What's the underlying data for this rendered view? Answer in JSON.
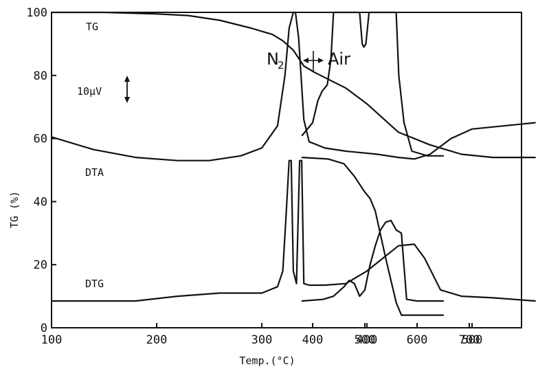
{
  "chart_data": {
    "type": "line",
    "ylabel": "TG (%)",
    "xlabel": "Temp.(°C)",
    "ylim": [
      0,
      100
    ],
    "yticks": [
      0,
      20,
      40,
      60,
      80,
      100
    ],
    "xticks_left": [
      100,
      200,
      300,
      400,
      500
    ],
    "xticks_right": [
      400,
      500,
      600,
      700
    ],
    "grid": false,
    "annotations": {
      "tg": "TG",
      "dta": "DTA",
      "dtg": "DTG",
      "scale": "10μV",
      "gas_left_main": "N",
      "gas_left_sub": "2",
      "gas_right": "Air"
    },
    "series": [
      {
        "name": "TG",
        "segment": "N2",
        "x": [
          100,
          150,
          200,
          230,
          260,
          290,
          310,
          320,
          330,
          340,
          350,
          380,
          400,
          430,
          460,
          490,
          520,
          560
        ],
        "y": [
          100,
          100,
          99.5,
          99,
          97.5,
          95,
          93,
          91,
          88,
          83,
          81,
          76,
          71,
          62,
          58,
          55,
          54,
          54
        ]
      },
      {
        "name": "TG",
        "segment": "Air",
        "x": [
          380,
          430,
          460,
          480,
          500,
          510,
          520,
          540,
          560,
          570,
          600,
          650
        ],
        "y": [
          54,
          53.5,
          52,
          48,
          43,
          41,
          37,
          22,
          8,
          4,
          4,
          4
        ]
      },
      {
        "name": "DTA",
        "segment": "N2",
        "x": [
          100,
          140,
          180,
          220,
          250,
          280,
          300,
          315,
          322,
          326,
          330,
          332,
          335,
          340,
          345,
          360,
          380,
          410,
          430,
          445,
          460,
          480,
          500,
          530,
          560
        ],
        "y": [
          60.5,
          56.5,
          54,
          53,
          53,
          54.5,
          57,
          64,
          80,
          95,
          100,
          100,
          92,
          66,
          59,
          57,
          56,
          55,
          54,
          53.5,
          55,
          60,
          63,
          64,
          65
        ]
      },
      {
        "name": "DTA",
        "segment": "Air",
        "x": [
          380,
          400,
          410,
          418,
          428,
          435,
          440,
          470,
          490,
          495,
          498,
          502,
          508,
          560,
          565,
          575,
          590,
          620,
          650
        ],
        "y": [
          61,
          65,
          72,
          75,
          77,
          85,
          100,
          100,
          100,
          90,
          89,
          90,
          100,
          100,
          80,
          65,
          56,
          54.5,
          54.5
        ]
      },
      {
        "name": "DTG",
        "segment": "N2",
        "x": [
          100,
          180,
          220,
          260,
          300,
          315,
          320,
          323,
          326,
          328,
          330,
          333,
          336,
          338,
          340,
          345,
          360,
          380,
          400,
          415,
          430,
          445,
          455,
          470,
          490,
          520,
          560
        ],
        "y": [
          8.5,
          8.5,
          10,
          11,
          11,
          13,
          18,
          35,
          53,
          53,
          18,
          14,
          53,
          53,
          14,
          13.5,
          13.5,
          14,
          18,
          22,
          26,
          26.5,
          22,
          12,
          10,
          9.5,
          8.5
        ]
      },
      {
        "name": "DTG",
        "segment": "Air",
        "x": [
          380,
          420,
          440,
          460,
          470,
          480,
          490,
          500,
          510,
          520,
          530,
          540,
          550,
          560,
          570,
          580,
          600,
          650
        ],
        "y": [
          8.5,
          9,
          10,
          13,
          15,
          14,
          10,
          12,
          20,
          26,
          31,
          33.5,
          34,
          31,
          30,
          9,
          8.5,
          8.5
        ]
      }
    ]
  }
}
